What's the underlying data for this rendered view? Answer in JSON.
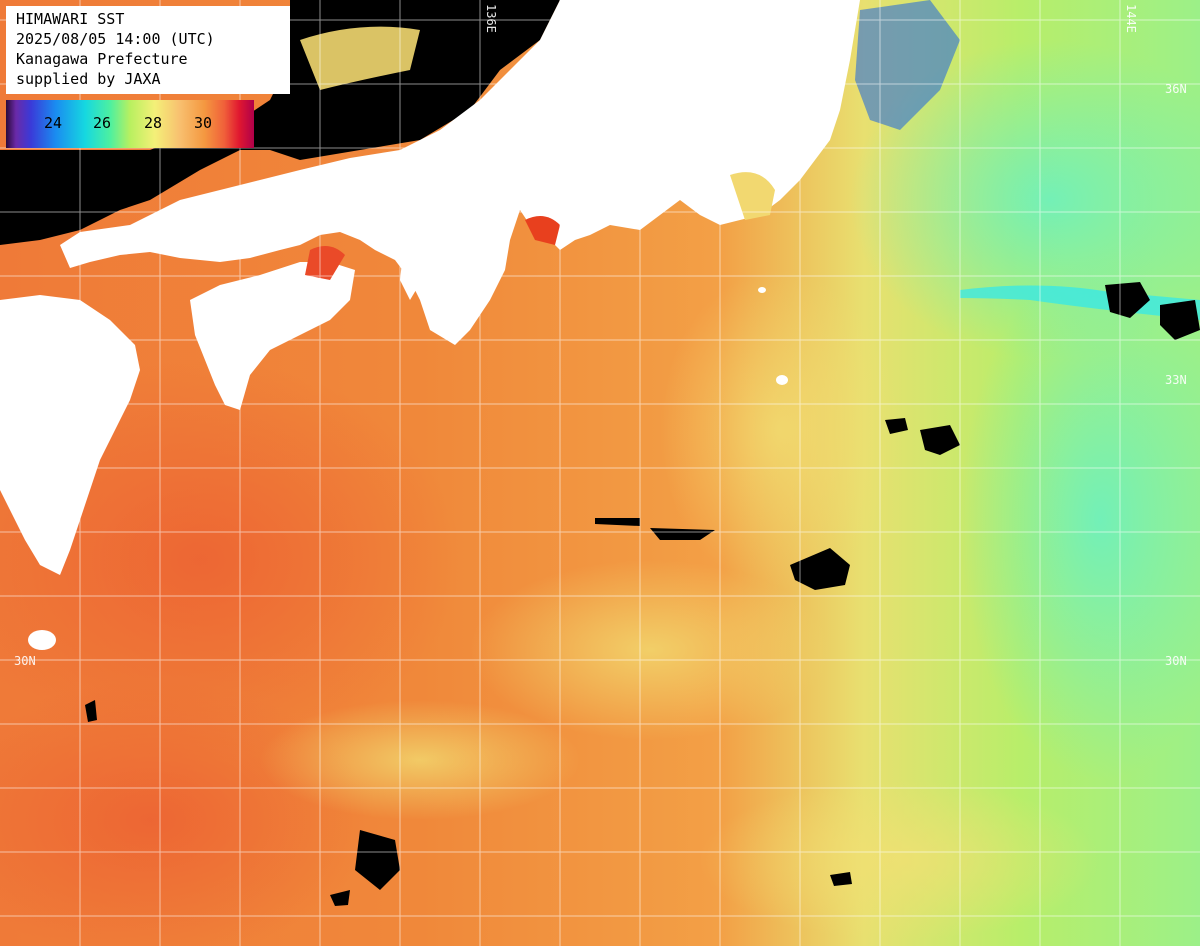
{
  "info": {
    "line1": "HIMAWARI SST",
    "line2": "2025/08/05 14:00 (UTC)",
    "line3": "Kanagawa Prefecture",
    "line4": "supplied by JAXA"
  },
  "legend": {
    "ticks": [
      "24",
      "26",
      "28",
      "30"
    ]
  },
  "grid_labels": {
    "lon_136": "136E",
    "lon_144": "144E",
    "lat_36": "36N",
    "lat_33_right": "33N",
    "lat_30_left": "30N",
    "lat_30_right": "30N"
  },
  "colors": {
    "warm_sea": "#f39a3c",
    "hot_sea": "#ee6f34",
    "mild_sea": "#f2d870",
    "cool_sea": "#b8f060",
    "cold_sea": "#5ff0b8",
    "land": "#ffffff",
    "cloud": "#000000"
  }
}
